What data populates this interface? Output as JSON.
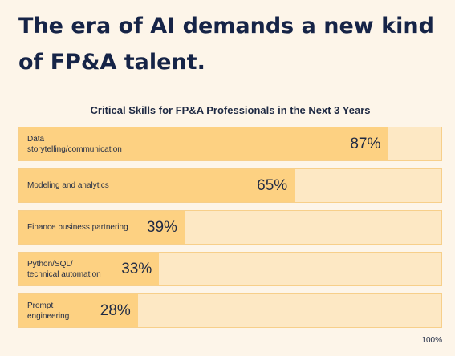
{
  "headline": "The era of AI demands a new kind of FP&A talent.",
  "chart_data": {
    "type": "bar",
    "orientation": "horizontal",
    "title": "Critical Skills for FP&A Professionals in the Next 3 Years",
    "categories": [
      "Data storytelling/communication",
      "Modeling and analytics",
      "Finance business partnering",
      "Python/SQL/\ntechnical automation",
      "Prompt\nengineering"
    ],
    "values": [
      87,
      65,
      39,
      33,
      28
    ],
    "value_labels": [
      "87%",
      "65%",
      "39%",
      "33%",
      "28%"
    ],
    "xlim": [
      0,
      100
    ],
    "max_label": "100%",
    "grid": false,
    "colors": {
      "fill": "#fdd182",
      "track": "#fde8c4",
      "border": "#f7cf8a",
      "text": "#162447"
    }
  }
}
